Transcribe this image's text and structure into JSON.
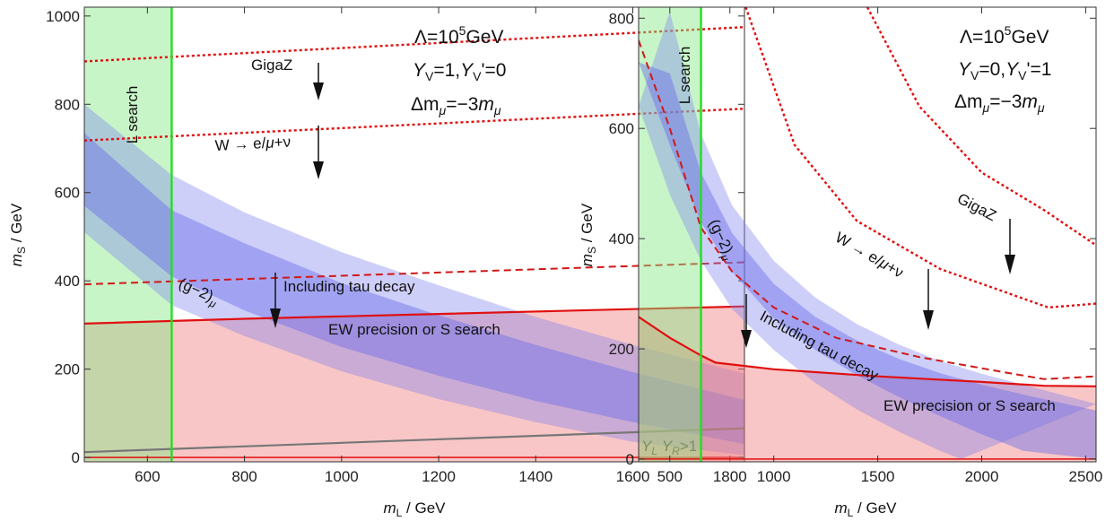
{
  "chart_data": [
    {
      "type": "area",
      "xlabel": "m_L / GeV",
      "ylabel": "m_S / GeV",
      "xlim": [
        470,
        1830
      ],
      "ylim": [
        -10,
        1020
      ],
      "xticks": [
        600,
        800,
        1000,
        1200,
        1400,
        1600,
        1800
      ],
      "yticks": [
        0,
        200,
        400,
        600,
        800,
        1000
      ],
      "params": [
        {
          "main": "Λ=10",
          "sup": "5",
          "tail": "GeV"
        },
        {
          "main": "Y_V=1,Y_V'=0"
        },
        {
          "main": "Δm_μ=−3m_μ"
        }
      ],
      "regions": {
        "l_search_cut": 650,
        "ew_precision_curve": [
          [
            470,
            303
          ],
          [
            800,
            314
          ],
          [
            1200,
            325
          ],
          [
            1600,
            336
          ],
          [
            1830,
            342
          ]
        ],
        "g2_outer_upper": [
          [
            470,
            800
          ],
          [
            650,
            640
          ],
          [
            800,
            555
          ],
          [
            1000,
            465
          ],
          [
            1200,
            390
          ],
          [
            1400,
            318
          ],
          [
            1600,
            255
          ],
          [
            1830,
            190
          ]
        ],
        "g2_inner_upper": [
          [
            470,
            735
          ],
          [
            650,
            560
          ],
          [
            800,
            485
          ],
          [
            1000,
            395
          ],
          [
            1200,
            322
          ],
          [
            1400,
            255
          ],
          [
            1600,
            193
          ],
          [
            1830,
            130
          ]
        ],
        "g2_inner_lower": [
          [
            470,
            570
          ],
          [
            650,
            410
          ],
          [
            800,
            333
          ],
          [
            1000,
            250
          ],
          [
            1200,
            185
          ],
          [
            1400,
            128
          ],
          [
            1600,
            80
          ],
          [
            1830,
            30
          ]
        ],
        "g2_outer_lower": [
          [
            470,
            510
          ],
          [
            650,
            345
          ],
          [
            800,
            275
          ],
          [
            1000,
            195
          ],
          [
            1200,
            132
          ],
          [
            1400,
            80
          ],
          [
            1600,
            35
          ],
          [
            1830,
            5
          ]
        ],
        "yl_yr_curve": [
          [
            470,
            12
          ],
          [
            1830,
            66
          ]
        ],
        "gigaz_curve": [
          [
            470,
            897
          ],
          [
            1830,
            975
          ]
        ],
        "w_decay_curve": [
          [
            470,
            718
          ],
          [
            1830,
            790
          ]
        ],
        "tau_decay_curve": [
          [
            470,
            392
          ],
          [
            1830,
            442
          ]
        ]
      },
      "labels": {
        "gigaz": "GigaZ",
        "w_decay": "W → e/μ+ν",
        "tau": "Including tau decay",
        "ew": "EW precision or S search",
        "g2_main": "(g−2)",
        "g2_sub": "μ",
        "l_search": "L search",
        "ylyr": "Y_L Y_R>1"
      }
    },
    {
      "type": "area",
      "xlabel": "m_L / GeV",
      "ylabel": "m_S / GeV",
      "xlim": [
        350,
        2550
      ],
      "ylim": [
        -5,
        820
      ],
      "xticks": [
        500,
        1000,
        1500,
        2000,
        2500
      ],
      "yticks": [
        0,
        200,
        400,
        600,
        800
      ],
      "params": [
        {
          "main": "Λ=10",
          "sup": "5",
          "tail": "GeV"
        },
        {
          "main": "Y_V=0,Y_V'=1"
        },
        {
          "main": "Δm_μ=−3m_μ"
        }
      ],
      "regions": {
        "l_search_cut": 650,
        "ew_precision_curve": [
          [
            350,
            258
          ],
          [
            500,
            220
          ],
          [
            650,
            188
          ],
          [
            720,
            175
          ],
          [
            1000,
            163
          ],
          [
            1500,
            150
          ],
          [
            2000,
            140
          ],
          [
            2300,
            133
          ],
          [
            2550,
            132
          ]
        ],
        "g2_outer_upper": [
          [
            500,
            812
          ],
          [
            650,
            590
          ],
          [
            800,
            460
          ],
          [
            1000,
            360
          ],
          [
            1200,
            293
          ],
          [
            1400,
            245
          ],
          [
            1600,
            208
          ],
          [
            1800,
            178
          ],
          [
            2000,
            155
          ],
          [
            2200,
            135
          ],
          [
            2550,
            100
          ]
        ],
        "g2_inner_upper": [
          [
            500,
            700
          ],
          [
            650,
            520
          ],
          [
            800,
            410
          ],
          [
            1000,
            318
          ],
          [
            1200,
            258
          ],
          [
            1400,
            215
          ],
          [
            1600,
            182
          ],
          [
            1800,
            156
          ],
          [
            2000,
            135
          ],
          [
            2200,
            117
          ],
          [
            2550,
            88
          ]
        ],
        "g2_inner_lower": [
          [
            350,
            720
          ],
          [
            500,
            570
          ],
          [
            650,
            430
          ],
          [
            800,
            340
          ],
          [
            1000,
            255
          ],
          [
            1200,
            198
          ],
          [
            1400,
            152
          ],
          [
            1600,
            113
          ],
          [
            1800,
            78
          ],
          [
            2000,
            45
          ],
          [
            2200,
            15
          ],
          [
            2550,
            0
          ]
        ],
        "g2_outer_lower": [
          [
            350,
            640
          ],
          [
            500,
            480
          ],
          [
            650,
            360
          ],
          [
            800,
            272
          ],
          [
            1000,
            198
          ],
          [
            1200,
            138
          ],
          [
            1400,
            90
          ],
          [
            1600,
            50
          ],
          [
            1800,
            15
          ],
          [
            1900,
            0
          ]
        ],
        "gigaz_curve": [
          [
            1450,
            820
          ],
          [
            1700,
            640
          ],
          [
            2000,
            520
          ],
          [
            2300,
            452
          ],
          [
            2550,
            388
          ]
        ],
        "w_decay_curve": [
          [
            865,
            820
          ],
          [
            1100,
            570
          ],
          [
            1400,
            432
          ],
          [
            1800,
            345
          ],
          [
            2320,
            275
          ],
          [
            2550,
            282
          ]
        ],
        "tau_decay_curve": [
          [
            350,
            760
          ],
          [
            500,
            600
          ],
          [
            650,
            420
          ],
          [
            800,
            340
          ],
          [
            1000,
            275
          ],
          [
            1300,
            220
          ],
          [
            1700,
            185
          ],
          [
            2100,
            158
          ],
          [
            2300,
            145
          ],
          [
            2550,
            150
          ]
        ]
      },
      "labels": {
        "gigaz": "GigaZ",
        "w_decay": "W → e/μ+ν",
        "tau": "Including tau decay",
        "ew": "EW precision or S search",
        "g2_main": "(g−2)",
        "g2_sub": "μ",
        "l_search": "L search"
      }
    }
  ]
}
